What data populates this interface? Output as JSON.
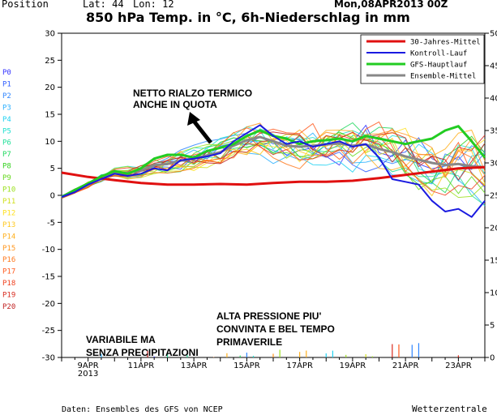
{
  "header": {
    "position_label": "Position",
    "lat_label": "Lat: 44",
    "lon_label": "Lon: 12",
    "run": "Mon,08APR2013 00Z",
    "title": "850 hPa Temp. in °C, 6h-Niederschlag in mm"
  },
  "footer": {
    "source": "Daten: Ensembles des GFS von NCEP",
    "brand": "Wetterzentrale"
  },
  "annotations": {
    "warming": [
      "NETTO RIALZO TERMICO",
      "ANCHE IN QUOTA"
    ],
    "pressure": [
      "ALTA PRESSIONE PIU'",
      "CONVINTA E BEL TEMPO",
      "PRIMAVERILE"
    ],
    "variable": [
      "VARIABILE MA",
      "SENZA PRECIPITAZIONI"
    ]
  },
  "members": [
    "P0",
    "P1",
    "P2",
    "P3",
    "P4",
    "P5",
    "P6",
    "P7",
    "P8",
    "P9",
    "P10",
    "P11",
    "P12",
    "P13",
    "P14",
    "P15",
    "P16",
    "P17",
    "P18",
    "P19",
    "P20"
  ],
  "member_colors": [
    "#3333ff",
    "#2d5cff",
    "#2f86ff",
    "#2cb0ff",
    "#22d2f2",
    "#22e0d0",
    "#22e09a",
    "#22d860",
    "#33d11e",
    "#66d81e",
    "#9ce01e",
    "#d0e01e",
    "#ffe01e",
    "#ffc81e",
    "#ffb01e",
    "#ff961e",
    "#ff7a1e",
    "#ff5a1e",
    "#f0401e",
    "#d82a1e",
    "#c01e1e"
  ],
  "chart_data": {
    "type": "line",
    "title": "850 hPa Temp. in °C, 6h-Niederschlag in mm",
    "x_tick_labels": [
      "9APR",
      "11APR",
      "13APR",
      "15APR",
      "17APR",
      "19APR",
      "21APR",
      "23APR"
    ],
    "x_sub_label": "2013",
    "x_range_days": [
      8.0,
      24.0
    ],
    "ylim_left": [
      -30,
      30
    ],
    "ylim_right": [
      0,
      50
    ],
    "yticks_left": [
      30,
      25,
      20,
      15,
      10,
      5,
      0,
      -5,
      -10,
      -15,
      -20,
      -25,
      -30
    ],
    "yticks_right": [
      50,
      45,
      40,
      35,
      30,
      25,
      20,
      15,
      10,
      5,
      0
    ],
    "legend_position": "top-right",
    "grid": false,
    "series": [
      {
        "name": "30-Jahres-Mittel",
        "color": "#e01010",
        "width": 3,
        "x": [
          8.0,
          9,
          10,
          11,
          12,
          13,
          14,
          15,
          16,
          17,
          18,
          19,
          20,
          21,
          22,
          23,
          24
        ],
        "y": [
          4.2,
          3.4,
          2.8,
          2.3,
          2.0,
          2.0,
          2.1,
          2.0,
          2.3,
          2.5,
          2.5,
          2.7,
          3.2,
          3.8,
          4.4,
          5.0,
          5.2
        ]
      },
      {
        "name": "Kontroll-Lauf",
        "color": "#1a1ae0",
        "width": 2,
        "x": [
          8.0,
          8.5,
          9,
          9.5,
          10,
          10.5,
          11,
          11.5,
          12,
          12.5,
          13,
          13.5,
          14,
          14.5,
          15,
          15.5,
          16,
          16.5,
          17,
          17.5,
          18,
          18.5,
          19,
          19.5,
          20,
          20.5,
          21,
          21.5,
          22,
          22.5,
          23,
          23.5,
          24
        ],
        "y": [
          -0.3,
          0.6,
          2.0,
          3.0,
          4.0,
          3.6,
          4.0,
          5.0,
          4.6,
          6.5,
          6.8,
          7.2,
          7.8,
          10.0,
          11.5,
          13.0,
          11.0,
          9.5,
          10.0,
          9.0,
          9.5,
          10.0,
          9.0,
          9.5,
          7.0,
          3.0,
          2.5,
          2.0,
          -1.0,
          -3.0,
          -2.5,
          -4.0,
          -1.0
        ]
      },
      {
        "name": "GFS-Hauptlauf",
        "color": "#22cc22",
        "width": 3,
        "x": [
          8.0,
          8.5,
          9,
          9.5,
          10,
          10.5,
          11,
          11.5,
          12,
          12.5,
          13,
          13.5,
          14,
          14.5,
          15,
          15.5,
          16,
          16.5,
          17,
          17.5,
          18,
          18.5,
          19,
          19.5,
          20,
          20.5,
          21,
          21.5,
          22,
          22.5,
          23,
          23.5,
          24
        ],
        "y": [
          -0.3,
          1.0,
          2.2,
          3.5,
          4.5,
          4.0,
          5.0,
          6.8,
          7.5,
          7.5,
          7.0,
          8.2,
          8.8,
          9.5,
          11.0,
          12.0,
          11.0,
          10.5,
          9.5,
          10.0,
          10.2,
          10.5,
          10.0,
          11.0,
          10.5,
          10.0,
          9.5,
          10.0,
          10.5,
          12.0,
          12.8,
          10.0,
          7.0
        ]
      },
      {
        "name": "Ensemble-Mittel",
        "color": "#888888",
        "width": 3,
        "x": [
          8.0,
          8.5,
          9,
          9.5,
          10,
          10.5,
          11,
          11.5,
          12,
          12.5,
          13,
          13.5,
          14,
          14.5,
          15,
          15.5,
          16,
          16.5,
          17,
          17.5,
          18,
          18.5,
          19,
          19.5,
          20,
          20.5,
          21,
          21.5,
          22,
          22.5,
          23,
          23.5,
          24
        ],
        "y": [
          -0.3,
          0.8,
          2.0,
          3.2,
          4.2,
          4.2,
          4.6,
          5.6,
          5.8,
          6.4,
          6.8,
          7.4,
          8.0,
          9.2,
          10.2,
          10.8,
          10.0,
          9.2,
          9.0,
          9.2,
          9.4,
          9.6,
          9.2,
          9.4,
          8.6,
          8.0,
          7.2,
          6.6,
          6.0,
          5.6,
          5.8,
          5.4,
          5.2
        ]
      }
    ],
    "ensemble_members": {
      "count": 21
    }
  }
}
